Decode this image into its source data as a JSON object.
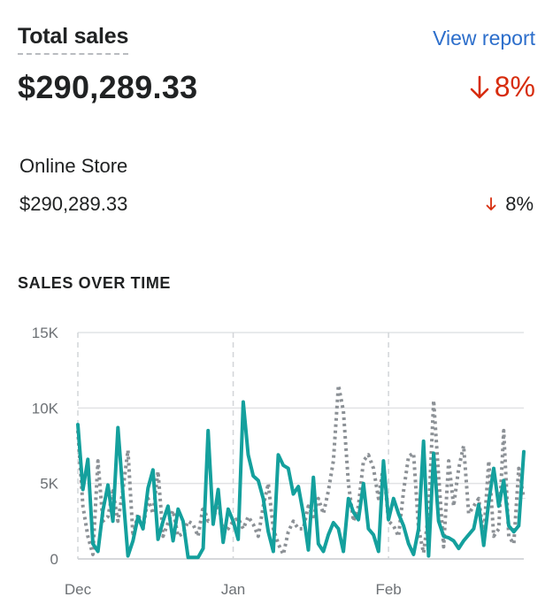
{
  "card": {
    "title": "Total sales",
    "view_report": "View report",
    "total_value": "$290,289.33",
    "total_change": "8%",
    "change_icon": "arrow-down-icon",
    "accent_color": "#2c6ecb",
    "negative_color": "#d72c0d"
  },
  "breakdown": [
    {
      "name": "Online Store",
      "value": "$290,289.33",
      "change": "8%"
    }
  ],
  "section_title": "SALES OVER TIME",
  "chart_data": {
    "type": "line",
    "xlabel": "",
    "ylabel": "",
    "x_tick_labels": [
      "Dec",
      "Jan",
      "Feb"
    ],
    "x_tick_days": [
      0,
      31,
      62
    ],
    "y_ticks": [
      0,
      5000,
      10000,
      15000
    ],
    "y_tick_labels": [
      "0",
      "5K",
      "10K",
      "15K"
    ],
    "ylim": [
      0,
      15000
    ],
    "xlim": [
      0,
      89
    ],
    "grid": true,
    "series": [
      {
        "style": "dotted",
        "color": "#8c9196",
        "values": [
          8500,
          3500,
          1500,
          300,
          6500,
          2500,
          2800,
          4500,
          2500,
          4600,
          7200,
          1500,
          3000,
          2000,
          4000,
          3000,
          5800,
          1500,
          2400,
          3200,
          1500,
          1700,
          2500,
          2300,
          1500,
          3500,
          2500,
          2600,
          3800,
          1800,
          2000,
          2500,
          2700,
          2000,
          2800,
          2300,
          1500,
          3500,
          5000,
          2000,
          1000,
          300,
          1800,
          2500,
          2000,
          2000,
          3500,
          2800,
          4000,
          3000,
          4500,
          6500,
          11500,
          9800,
          5000,
          2500,
          3500,
          6500,
          6900,
          6000,
          4000,
          6200,
          2500,
          2200,
          1500,
          4500,
          6800,
          7000,
          2000,
          400,
          3000,
          10500,
          5500,
          800,
          6500,
          3500,
          6000,
          7500,
          3000,
          3500,
          4000,
          1500,
          6500,
          1500,
          2000,
          8500,
          1500,
          1000,
          6000,
          4000
        ]
      },
      {
        "style": "solid",
        "color": "#14a09d",
        "values": [
          8900,
          4600,
          6600,
          1000,
          500,
          3200,
          4900,
          2500,
          8700,
          4300,
          200,
          1200,
          2800,
          2000,
          4700,
          5900,
          1300,
          2500,
          3500,
          1200,
          3300,
          2500,
          100,
          100,
          100,
          700,
          8500,
          2300,
          4600,
          1100,
          3300,
          2500,
          1300,
          10400,
          6900,
          5500,
          5200,
          4000,
          1800,
          500,
          6900,
          6200,
          6000,
          4300,
          4800,
          3000,
          600,
          5400,
          1000,
          500,
          1600,
          2400,
          2000,
          500,
          4000,
          3100,
          2600,
          5000,
          2000,
          1600,
          500,
          6500,
          2600,
          4000,
          3000,
          2200,
          1000,
          300,
          2000,
          7800,
          200,
          7000,
          2500,
          1500,
          1400,
          1200,
          700,
          1200,
          1600,
          2000,
          3600,
          900,
          3800,
          6000,
          3500,
          5200,
          2200,
          1800,
          2200,
          7100
        ]
      }
    ]
  }
}
